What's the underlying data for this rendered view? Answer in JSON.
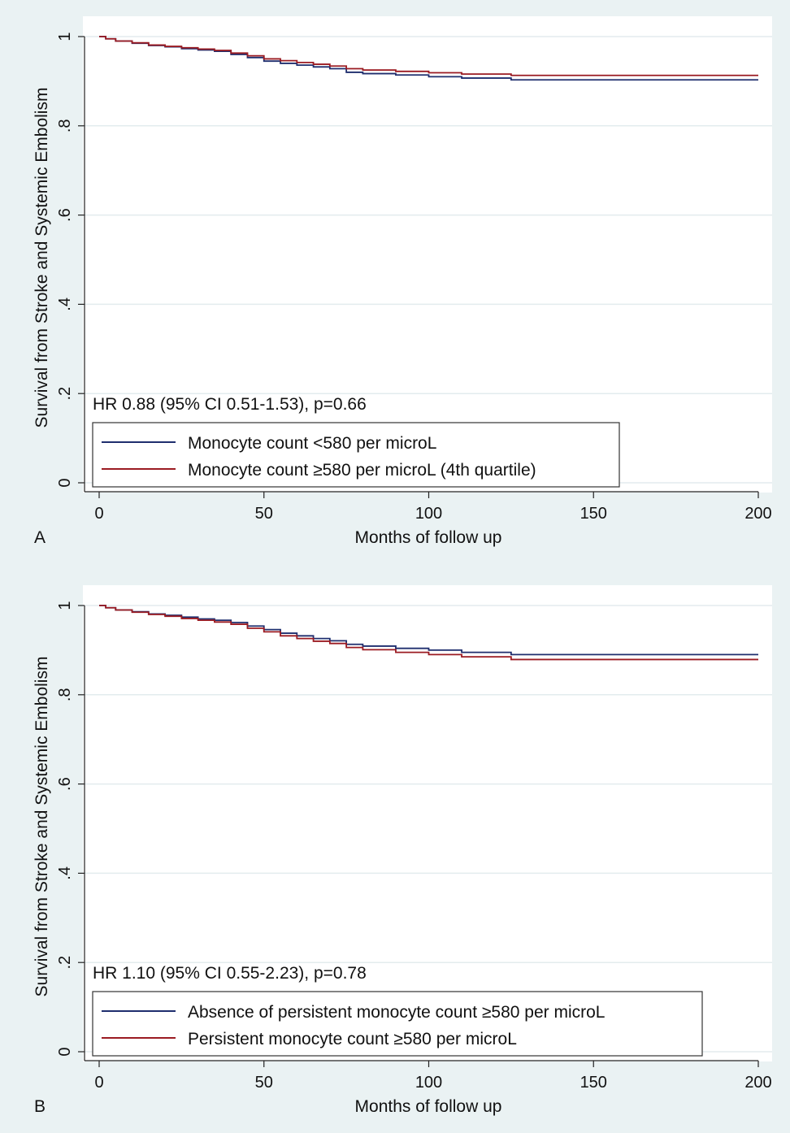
{
  "chart_data": [
    {
      "type": "line",
      "panel_label": "A",
      "xlabel": "Months of follow up",
      "ylabel": "Survival from Stroke and Systemic Embolism",
      "xlim": [
        0,
        200
      ],
      "ylim": [
        0,
        1
      ],
      "x_ticks": [
        "0",
        "50",
        "100",
        "150",
        "200"
      ],
      "y_ticks": [
        "0",
        ".2",
        ".4",
        ".6",
        ".8",
        "1"
      ],
      "grid": true,
      "annotation": "HR 0.88 (95% CI 0.51-1.53), p=0.66",
      "legend_position": "bottom-left",
      "series": [
        {
          "name": "Monocyte count <580 per microL",
          "color": "#1f2e6e",
          "x": [
            0,
            2,
            5,
            10,
            15,
            20,
            25,
            30,
            35,
            40,
            45,
            50,
            55,
            60,
            65,
            70,
            75,
            80,
            90,
            100,
            110,
            125,
            200
          ],
          "y": [
            1.0,
            0.995,
            0.99,
            0.985,
            0.98,
            0.977,
            0.973,
            0.97,
            0.967,
            0.96,
            0.953,
            0.945,
            0.94,
            0.936,
            0.932,
            0.928,
            0.92,
            0.917,
            0.914,
            0.91,
            0.907,
            0.903,
            0.903
          ]
        },
        {
          "name": "Monocyte count ≥580 per microL (4th quartile)",
          "color": "#9b1b22",
          "x": [
            0,
            2,
            5,
            10,
            15,
            20,
            25,
            30,
            35,
            40,
            45,
            50,
            55,
            60,
            65,
            70,
            75,
            80,
            90,
            100,
            110,
            125,
            200
          ],
          "y": [
            1.0,
            0.995,
            0.99,
            0.986,
            0.981,
            0.978,
            0.975,
            0.972,
            0.969,
            0.963,
            0.957,
            0.95,
            0.946,
            0.942,
            0.938,
            0.934,
            0.928,
            0.925,
            0.922,
            0.919,
            0.916,
            0.913,
            0.913
          ]
        }
      ]
    },
    {
      "type": "line",
      "panel_label": "B",
      "xlabel": "Months of follow up",
      "ylabel": "Survival from Stroke and Systemic Embolism",
      "xlim": [
        0,
        200
      ],
      "ylim": [
        0,
        1
      ],
      "x_ticks": [
        "0",
        "50",
        "100",
        "150",
        "200"
      ],
      "y_ticks": [
        "0",
        ".2",
        ".4",
        ".6",
        ".8",
        "1"
      ],
      "grid": true,
      "annotation": "HR 1.10 (95% CI 0.55-2.23), p=0.78",
      "legend_position": "bottom-left",
      "series": [
        {
          "name": "Absence of persistent monocyte count ≥580 per microL",
          "color": "#1f2e6e",
          "x": [
            0,
            2,
            5,
            10,
            15,
            20,
            25,
            30,
            35,
            40,
            45,
            50,
            55,
            60,
            65,
            70,
            75,
            80,
            90,
            100,
            110,
            125,
            200
          ],
          "y": [
            1.0,
            0.995,
            0.99,
            0.986,
            0.981,
            0.978,
            0.974,
            0.97,
            0.967,
            0.962,
            0.954,
            0.946,
            0.938,
            0.932,
            0.926,
            0.921,
            0.913,
            0.909,
            0.904,
            0.9,
            0.895,
            0.89,
            0.89
          ]
        },
        {
          "name": "Persistent monocyte count ≥580 per microL",
          "color": "#9b1b22",
          "x": [
            0,
            2,
            5,
            10,
            15,
            20,
            25,
            30,
            35,
            40,
            45,
            50,
            55,
            60,
            65,
            70,
            75,
            80,
            90,
            100,
            110,
            125,
            200
          ],
          "y": [
            1.0,
            0.995,
            0.99,
            0.985,
            0.98,
            0.976,
            0.971,
            0.967,
            0.963,
            0.958,
            0.949,
            0.941,
            0.932,
            0.926,
            0.92,
            0.915,
            0.906,
            0.901,
            0.895,
            0.89,
            0.885,
            0.879,
            0.879
          ]
        }
      ]
    }
  ]
}
